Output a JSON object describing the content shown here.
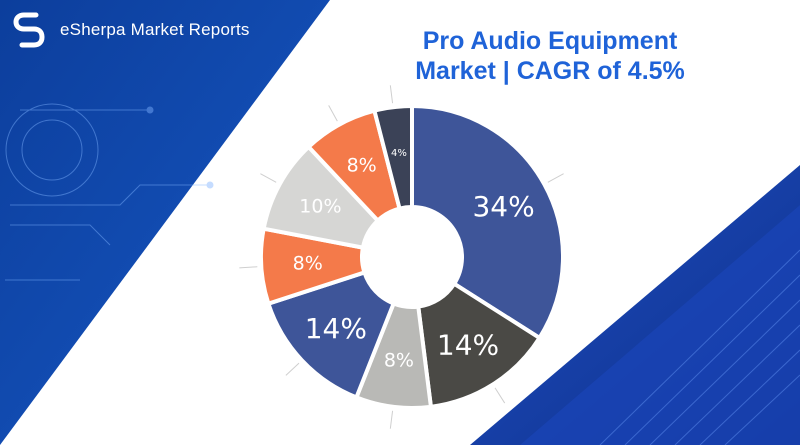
{
  "brand": {
    "name": "eSherpa Market Reports",
    "logo_icon": "esherpa-logo-icon"
  },
  "title": {
    "line1": "Pro Audio Equipment",
    "line2": "Market | CAGR of 4.5%"
  },
  "colors": {
    "navy": "#1a3580",
    "slate": "#3e5599",
    "dark_slate": "#3b4257",
    "charcoal": "#4a4945",
    "gray": "#b9b9b6",
    "light_gray": "#d6d6d4",
    "orange": "#f47a4a",
    "title_blue": "#1f63d8"
  },
  "chart_data": {
    "type": "pie",
    "title": "",
    "slices": [
      {
        "name": "",
        "label": "34%",
        "value": 34,
        "color": "#3e5599"
      },
      {
        "name": "",
        "label": "14%",
        "value": 14,
        "color": "#4a4945"
      },
      {
        "name": "",
        "label": "8%",
        "value": 8,
        "color": "#b9b9b6"
      },
      {
        "name": "",
        "label": "14%",
        "value": 14,
        "color": "#3e5599"
      },
      {
        "name": "",
        "label": "8%",
        "value": 8,
        "color": "#f47a4a"
      },
      {
        "name": "",
        "label": "10%",
        "value": 10,
        "color": "#d6d6d4"
      },
      {
        "name": "",
        "label": "8%",
        "value": 8,
        "color": "#f47a4a"
      },
      {
        "name": "",
        "label": "4%",
        "value": 4,
        "color": "#3b4257"
      }
    ],
    "legend": "none"
  }
}
